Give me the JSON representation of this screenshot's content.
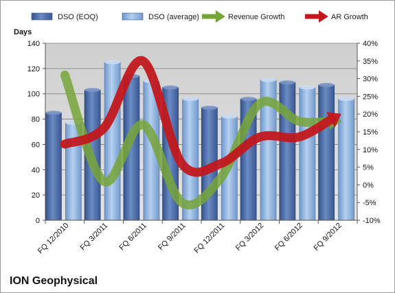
{
  "chart_data": {
    "type": "bar",
    "title": "ION Geophysical",
    "y_axis_title": "Days",
    "categories": [
      "FQ 12/2010",
      "FQ 3/2011",
      "FQ 6/2011",
      "FQ 9/2011",
      "FQ 12/2011",
      "FQ 3/2012",
      "FQ 6/2012",
      "FQ 9/2012"
    ],
    "ylim": [
      0,
      140
    ],
    "y_ticks": [
      0,
      20,
      40,
      60,
      80,
      100,
      120,
      140
    ],
    "y2lim": [
      -10,
      40
    ],
    "y2_ticks": [
      "-10%",
      "-5%",
      "0%",
      "5%",
      "10%",
      "15%",
      "20%",
      "25%",
      "30%",
      "35%",
      "40%"
    ],
    "y2_tick_values": [
      -10,
      -5,
      0,
      5,
      10,
      15,
      20,
      25,
      30,
      35,
      40
    ],
    "series": [
      {
        "name": "DSO (EOQ)",
        "kind": "bar",
        "color": "#4f6fa8",
        "values": [
          85,
          103,
          114,
          105,
          89,
          96,
          109,
          107
        ]
      },
      {
        "name": "DSO (average)",
        "kind": "bar",
        "color": "#8fb3e0",
        "values": [
          77,
          125,
          110,
          96,
          82,
          111,
          105,
          96
        ]
      },
      {
        "name": "Revenue Growth",
        "kind": "line",
        "axis": "secondary",
        "color": "#77a53a",
        "values": [
          31,
          1,
          17,
          -5,
          2,
          23,
          18,
          18
        ]
      },
      {
        "name": "AR Growth",
        "kind": "line",
        "axis": "secondary",
        "color": "#c2181e",
        "values": [
          11.5,
          16,
          35,
          6,
          6,
          13.5,
          13.5,
          19.5
        ]
      }
    ],
    "grid": true,
    "legend_position": "top"
  }
}
